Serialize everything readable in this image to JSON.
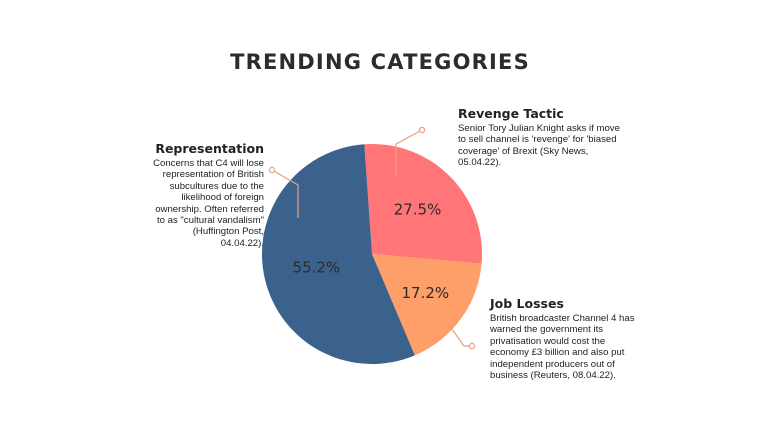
{
  "chart_data": {
    "type": "pie",
    "title": "TRENDING CATEGORIES",
    "slices": [
      {
        "name": "Revenge Tactic",
        "value": 27.5,
        "label": "27.5%",
        "color": "#ff7578",
        "description": "Senior Tory Julian Knight asks if move to sell channel is 'revenge' for 'biased coverage' of Brexit (Sky News, 05.04.22)."
      },
      {
        "name": "Job Losses",
        "value": 17.2,
        "label": "17.2%",
        "color": "#fe9e68",
        "description": "British broadcaster Channel 4 has warned the government its privatisation would cost the economy £3 billion and also put independent producers out of business (Reuters, 08.04.22)."
      },
      {
        "name": "Representation",
        "value": 55.2,
        "label": "55.2%",
        "color": "#3a628d",
        "description": "Concerns that C4 will lose representation of British subcultures due to the likelihood of foreign ownership. Often referred to as \"cultural vandalism\" (Huffington Post, 04.04.22)."
      }
    ],
    "connector_color": "#e8a07d"
  }
}
